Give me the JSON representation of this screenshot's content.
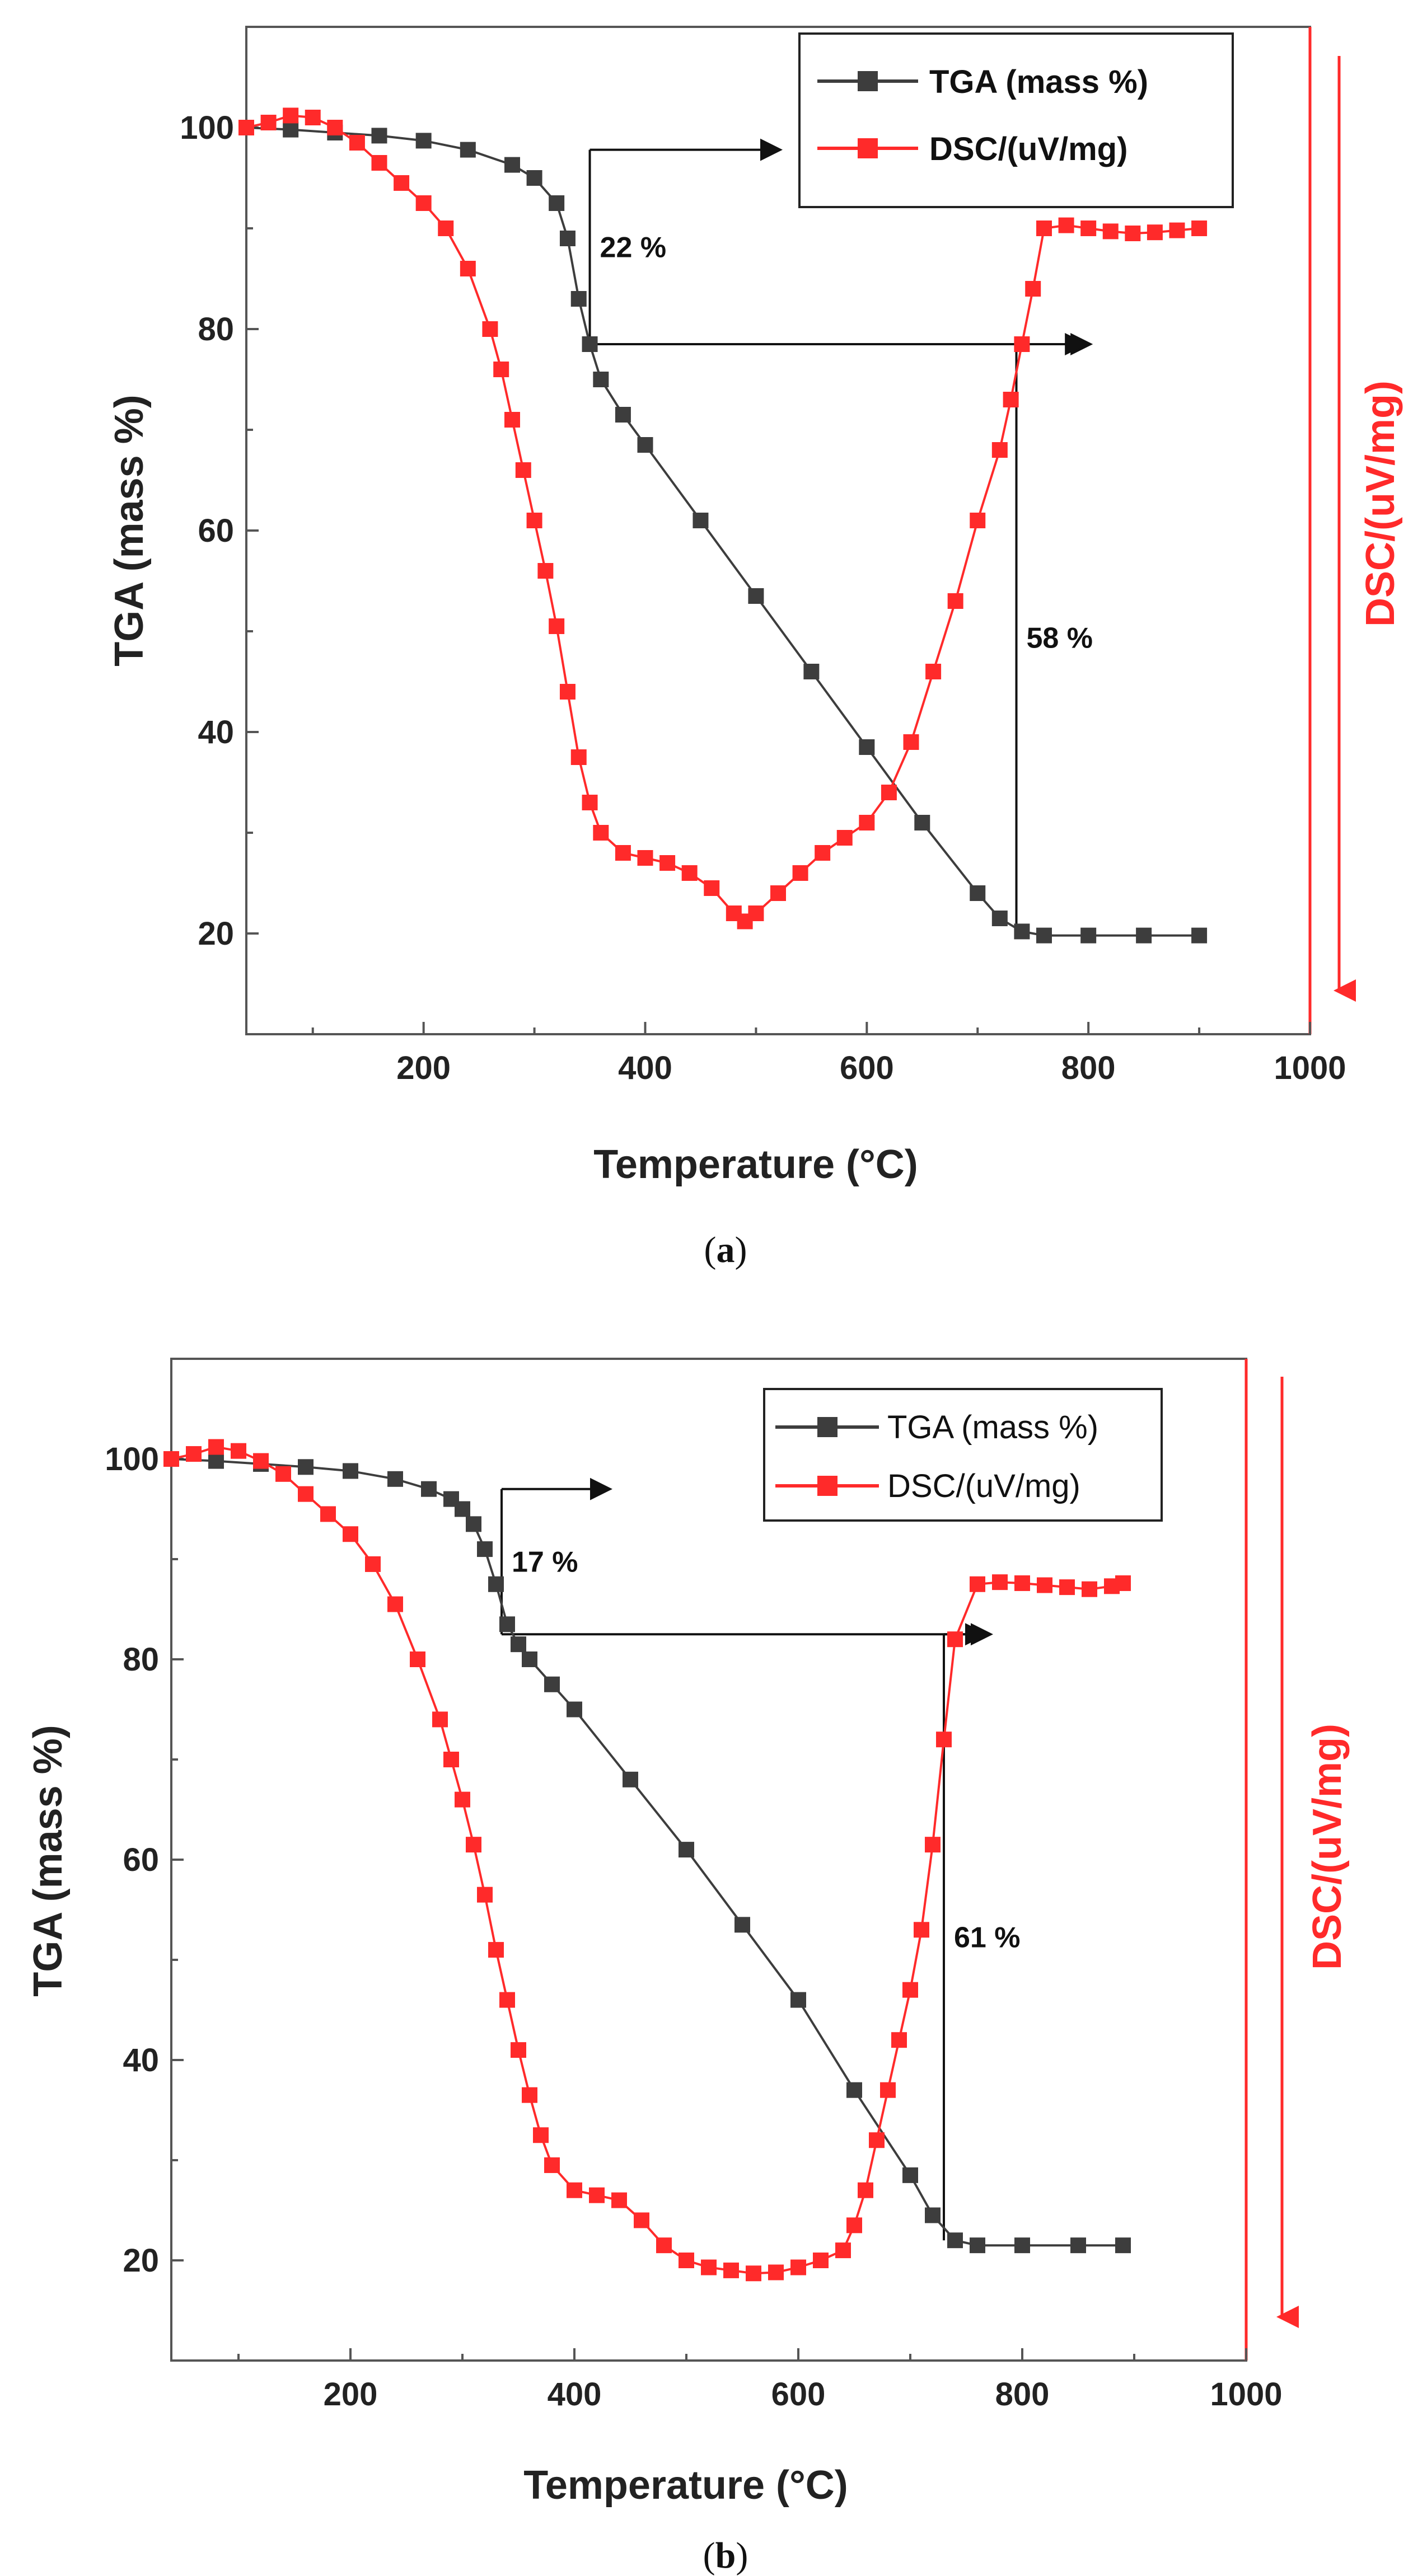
{
  "chart_data": [
    {
      "panel": "a",
      "type": "line",
      "xlabel": "Temperature (°C)",
      "ylabel": "TGA (mass %)",
      "y2label": "DSC/(uV/mg)",
      "xlim": [
        40,
        1000
      ],
      "ylim": [
        10,
        110
      ],
      "xticks": [
        200,
        400,
        600,
        800,
        1000
      ],
      "yticks": [
        20,
        40,
        60,
        80,
        100
      ],
      "legend_position": "top-right",
      "series": [
        {
          "name": "TGA (mass %)",
          "color": "#3d3d3d",
          "x": [
            40,
            80,
            120,
            160,
            200,
            240,
            280,
            300,
            320,
            330,
            340,
            350,
            360,
            380,
            400,
            450,
            500,
            550,
            600,
            650,
            700,
            720,
            740,
            760,
            800,
            850,
            900
          ],
          "y": [
            100,
            99.8,
            99.5,
            99.2,
            98.7,
            97.8,
            96.3,
            95,
            92.5,
            89,
            83,
            78.5,
            75,
            71.5,
            68.5,
            61,
            53.5,
            46,
            38.5,
            31,
            24,
            21.5,
            20.2,
            19.8,
            19.8,
            19.8,
            19.8
          ]
        },
        {
          "name": "DSC/(uV/mg)",
          "color": "#ff2a2a",
          "x": [
            40,
            60,
            80,
            100,
            120,
            140,
            160,
            180,
            200,
            220,
            240,
            260,
            270,
            280,
            290,
            300,
            310,
            320,
            330,
            340,
            350,
            360,
            380,
            400,
            420,
            440,
            460,
            480,
            490,
            500,
            520,
            540,
            560,
            580,
            600,
            620,
            640,
            660,
            680,
            700,
            720,
            730,
            740,
            750,
            760,
            780,
            800,
            820,
            840,
            860,
            880,
            900
          ],
          "y": [
            100,
            100.5,
            101.2,
            101,
            100,
            98.5,
            96.5,
            94.5,
            92.5,
            90,
            86,
            80,
            76,
            71,
            66,
            61,
            56,
            50.5,
            44,
            37.5,
            33,
            30,
            28,
            27.5,
            27,
            26,
            24.5,
            22,
            21.2,
            22,
            24,
            26,
            28,
            29.5,
            31,
            34,
            39,
            46,
            53,
            61,
            68,
            73,
            78.5,
            84,
            90,
            90.3,
            90,
            89.7,
            89.5,
            89.6,
            89.8,
            90
          ]
        }
      ],
      "annotations": [
        {
          "text": "22 %",
          "level_from": 97.8,
          "level_to": 78.5,
          "step_x": 350,
          "arrow_end_x": 520
        },
        {
          "text": "58 %",
          "level_from": 78.5,
          "level_to": 20.2,
          "step_x": 735,
          "arrow_end_x": 800
        }
      ]
    },
    {
      "panel": "b",
      "type": "line",
      "xlabel": "Temperature (°C)",
      "ylabel": "TGA (mass %)",
      "y2label": "DSC/(uV/mg)",
      "xlim": [
        40,
        1000
      ],
      "ylim": [
        10,
        110
      ],
      "xticks": [
        200,
        400,
        600,
        800,
        1000
      ],
      "yticks": [
        20,
        40,
        60,
        80,
        100
      ],
      "legend_position": "top-right",
      "series": [
        {
          "name": "TGA (mass %)",
          "color": "#3d3d3d",
          "x": [
            40,
            80,
            120,
            160,
            200,
            240,
            270,
            290,
            300,
            310,
            320,
            330,
            340,
            350,
            360,
            380,
            400,
            450,
            500,
            550,
            600,
            650,
            700,
            720,
            740,
            760,
            800,
            850,
            890
          ],
          "y": [
            100,
            99.8,
            99.5,
            99.2,
            98.8,
            98,
            97,
            96,
            95,
            93.5,
            91,
            87.5,
            83.5,
            81.5,
            80,
            77.5,
            75,
            68,
            61,
            53.5,
            46,
            37,
            28.5,
            24.5,
            22,
            21.5,
            21.5,
            21.5,
            21.5
          ]
        },
        {
          "name": "DSC/(uV/mg)",
          "color": "#ff2a2a",
          "x": [
            40,
            60,
            80,
            100,
            120,
            140,
            160,
            180,
            200,
            220,
            240,
            260,
            280,
            290,
            300,
            310,
            320,
            330,
            340,
            350,
            360,
            370,
            380,
            400,
            420,
            440,
            460,
            480,
            500,
            520,
            540,
            560,
            580,
            600,
            620,
            640,
            650,
            660,
            670,
            680,
            690,
            700,
            710,
            720,
            730,
            740,
            760,
            780,
            800,
            820,
            840,
            860,
            880,
            890
          ],
          "y": [
            100,
            100.5,
            101.2,
            100.8,
            99.8,
            98.5,
            96.5,
            94.5,
            92.5,
            89.5,
            85.5,
            80,
            74,
            70,
            66,
            61.5,
            56.5,
            51,
            46,
            41,
            36.5,
            32.5,
            29.5,
            27,
            26.5,
            26,
            24,
            21.5,
            20,
            19.3,
            19,
            18.7,
            18.8,
            19.3,
            20,
            21,
            23.5,
            27,
            32,
            37,
            42,
            47,
            53,
            61.5,
            72,
            82,
            87.5,
            87.7,
            87.6,
            87.4,
            87.2,
            87,
            87.3,
            87.6
          ]
        }
      ],
      "annotations": [
        {
          "text": "17 %",
          "level_from": 97,
          "level_to": 82.5,
          "step_x": 335,
          "arrow_end_x": 430
        },
        {
          "text": "61 %",
          "level_from": 82.5,
          "level_to": 22,
          "step_x": 730,
          "arrow_end_x": 770
        }
      ]
    }
  ],
  "captions": [
    {
      "open": "(",
      "letter": "a",
      "close": ")"
    },
    {
      "open": "(",
      "letter": "b",
      "close": ")"
    }
  ]
}
